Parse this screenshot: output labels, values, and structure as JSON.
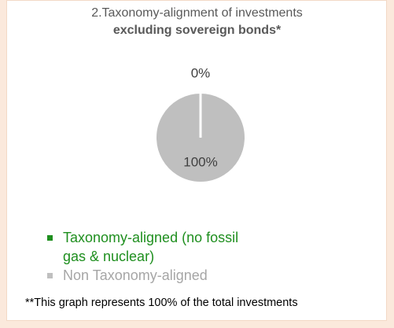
{
  "chart_data": {
    "type": "pie",
    "title": "2.Taxonomy-alignment of investments",
    "subtitle": "excluding sovereign bonds*",
    "categories": [
      "Taxonomy-aligned  (no fossil gas & nuclear)",
      "Non Taxonomy-aligned"
    ],
    "values": [
      0,
      100
    ],
    "value_labels": [
      "0%",
      "100%"
    ],
    "colors": [
      "#1f8f1f",
      "#bfbfbf"
    ],
    "legend_text_colors": [
      "#1f8f1f",
      "#a6a6a6"
    ],
    "note": "**This graph represents 100% of the total investments"
  }
}
